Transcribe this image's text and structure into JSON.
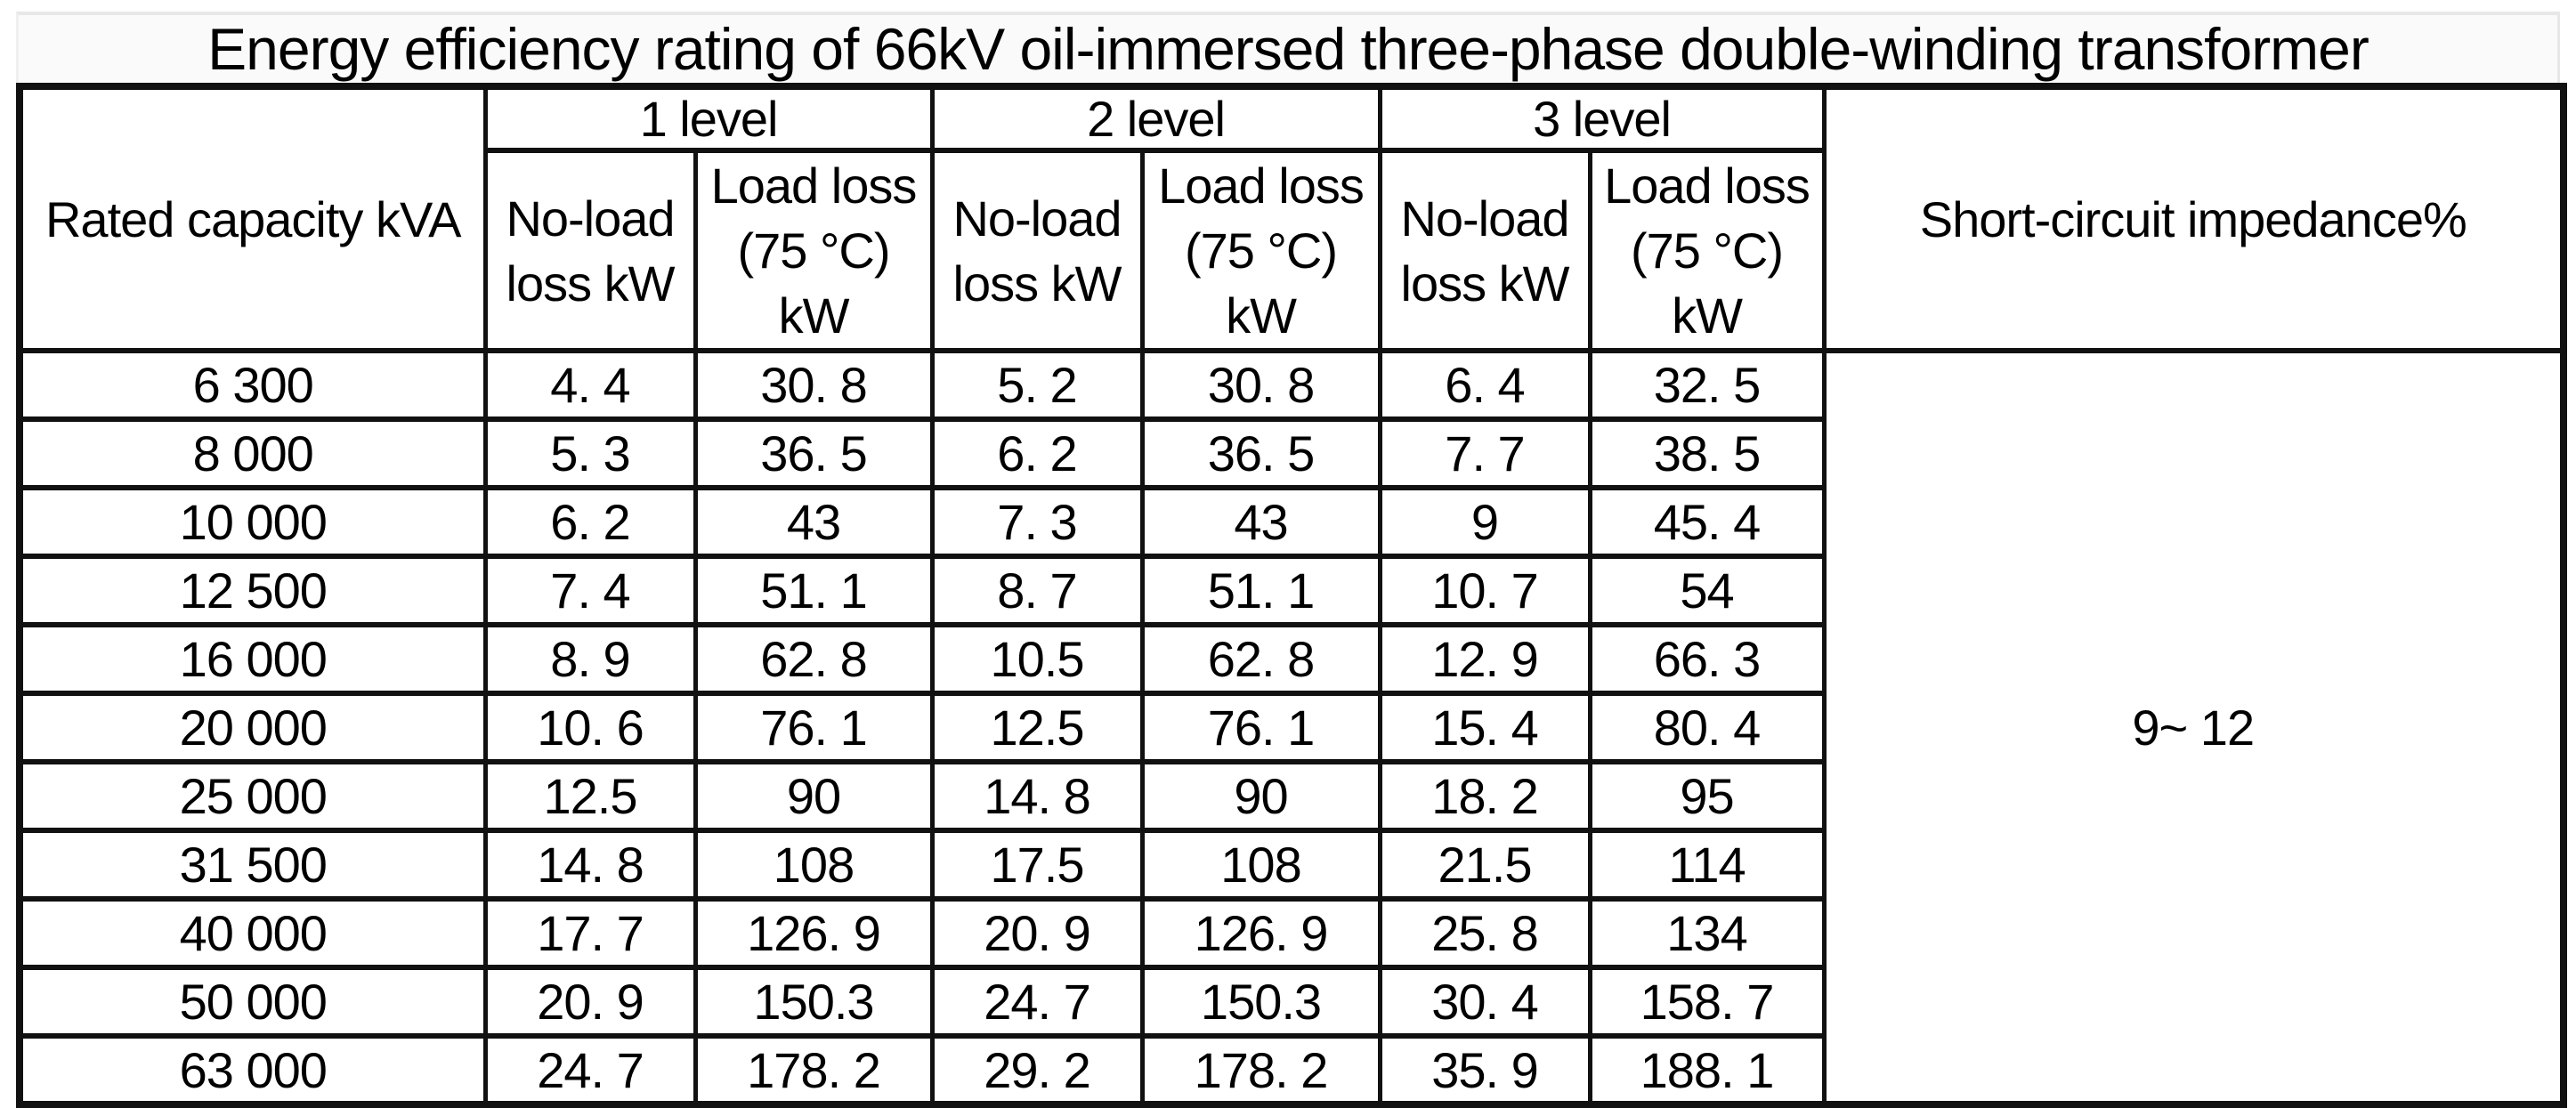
{
  "title": "Energy efficiency rating of 66kV oil-immersed three-phase double-winding transformer",
  "table": {
    "header": {
      "rated_capacity": "Rated capacity kVA",
      "level_groups": [
        "1 level",
        "2 level",
        "3 level"
      ],
      "no_load_loss": "No-load\nloss kW",
      "load_loss": "Load loss\n(75 °C)\nkW",
      "short_circuit_impedance": "Short-circuit impedance%"
    },
    "impedance_value": "9~ 12",
    "rows": [
      {
        "capacity": "6 300",
        "values": [
          "4. 4",
          "30. 8",
          "5. 2",
          "30. 8",
          "6. 4",
          "32. 5"
        ]
      },
      {
        "capacity": "8 000",
        "values": [
          "5. 3",
          "36. 5",
          "6. 2",
          "36. 5",
          "7. 7",
          "38. 5"
        ]
      },
      {
        "capacity": "10 000",
        "values": [
          "6. 2",
          "43",
          "7. 3",
          "43",
          "9",
          "45. 4"
        ]
      },
      {
        "capacity": "12 500",
        "values": [
          "7. 4",
          "51. 1",
          "8. 7",
          "51. 1",
          "10. 7",
          "54"
        ]
      },
      {
        "capacity": "16 000",
        "values": [
          "8. 9",
          "62. 8",
          "10.5",
          "62. 8",
          "12. 9",
          "66. 3"
        ]
      },
      {
        "capacity": "20 000",
        "values": [
          "10. 6",
          "76. 1",
          "12.5",
          "76. 1",
          "15. 4",
          "80. 4"
        ]
      },
      {
        "capacity": "25 000",
        "values": [
          "12.5",
          "90",
          "14. 8",
          "90",
          "18. 2",
          "95"
        ]
      },
      {
        "capacity": "31 500",
        "values": [
          "14. 8",
          "108",
          "17.5",
          "108",
          "21.5",
          "114"
        ]
      },
      {
        "capacity": "40 000",
        "values": [
          "17. 7",
          "126. 9",
          "20. 9",
          "126. 9",
          "25. 8",
          "134"
        ]
      },
      {
        "capacity": "50 000",
        "values": [
          "20. 9",
          "150.3",
          "24. 7",
          "150.3",
          "30. 4",
          "158. 7"
        ]
      },
      {
        "capacity": "63 000",
        "values": [
          "24. 7",
          "178. 2",
          "29. 2",
          "178. 2",
          "35. 9",
          "188. 1"
        ]
      }
    ]
  }
}
